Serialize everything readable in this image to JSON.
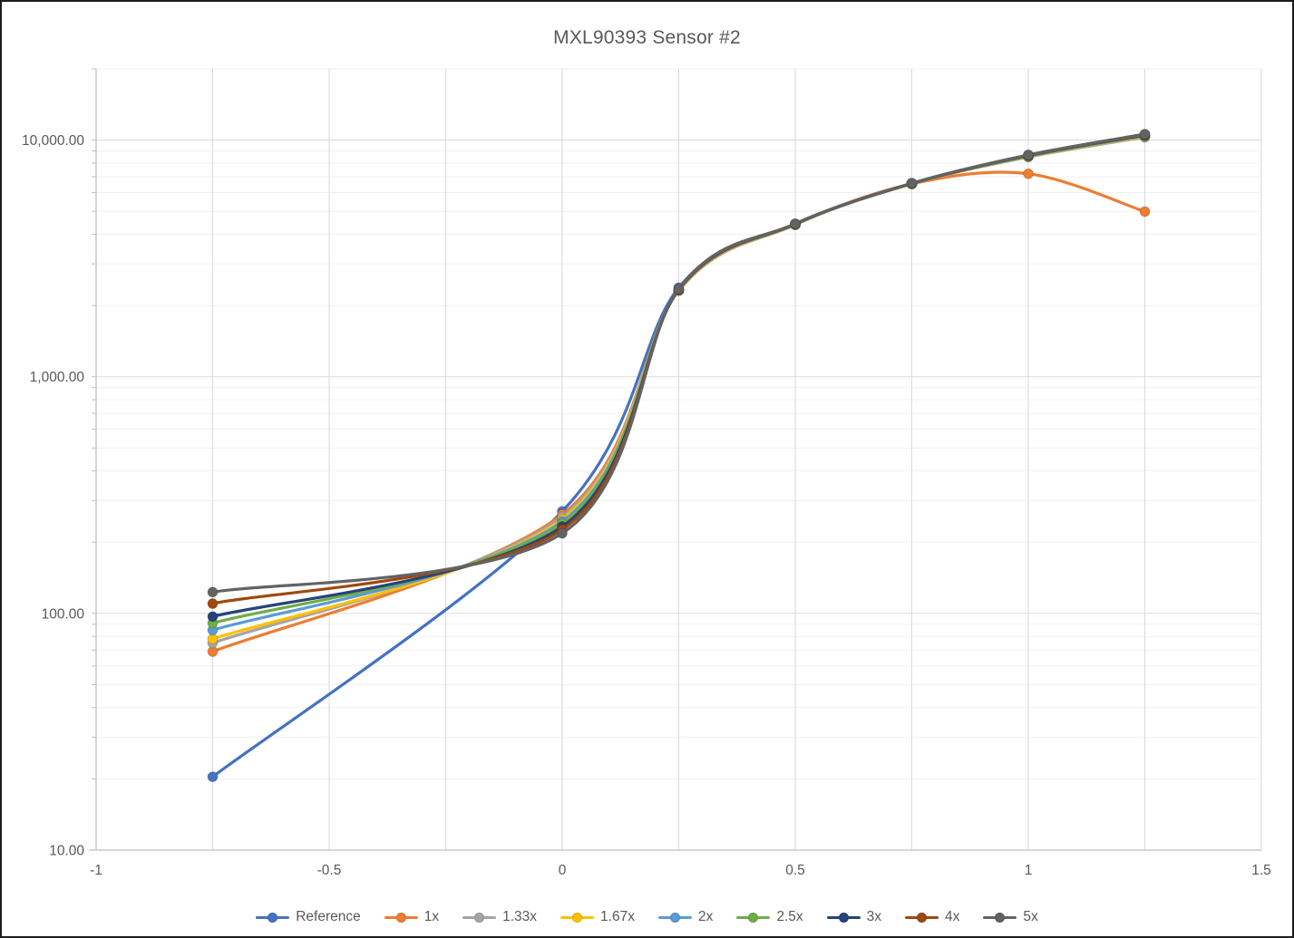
{
  "title": "MXL90393 Sensor #2",
  "colors": {
    "background": "#FFFFFF",
    "frame_border": "#1C1C1C",
    "grid_major": "#DADADA",
    "grid_minor": "#F1F1F1",
    "axis_line": "#BFBFBF",
    "text": "#595959"
  },
  "chart_data": {
    "type": "line",
    "title": "MXL90393 Sensor #2",
    "xlabel": "",
    "ylabel": "",
    "y_scale": "log",
    "xlim": [
      -1,
      1.5
    ],
    "ylim": [
      10,
      20000
    ],
    "grid": true,
    "v_grid_step": 0.25,
    "legend_position": "bottom",
    "marker": "circle",
    "smooth_lines": true,
    "x": [
      -0.75,
      0,
      0.25,
      0.5,
      0.75,
      1,
      1.25
    ],
    "series": [
      {
        "name": "Reference",
        "color": "#4472C4",
        "values": [
          20.4,
          270,
          2380,
          4420,
          6560,
          8640,
          10560
        ]
      },
      {
        "name": "1x",
        "color": "#ED7D31",
        "values": [
          69,
          262,
          2310,
          4390,
          6530,
          7210,
          4990
        ]
      },
      {
        "name": "1.33x",
        "color": "#A5A5A5",
        "values": [
          75,
          256,
          2315,
          4395,
          6535,
          8480,
          10280
        ]
      },
      {
        "name": "1.67x",
        "color": "#FFC000",
        "values": [
          78,
          250,
          2320,
          4400,
          6540,
          8520,
          10370
        ]
      },
      {
        "name": "2x",
        "color": "#5B9BD5",
        "values": [
          85,
          245,
          2325,
          4405,
          6545,
          8550,
          10420
        ]
      },
      {
        "name": "2.5x",
        "color": "#70AD47",
        "values": [
          91,
          240,
          2330,
          4410,
          6550,
          8580,
          10460
        ]
      },
      {
        "name": "3x",
        "color": "#264478",
        "values": [
          97,
          233,
          2335,
          4420,
          6555,
          8610,
          10500
        ]
      },
      {
        "name": "4x",
        "color": "#9E480E",
        "values": [
          110,
          226,
          2340,
          4425,
          6565,
          8630,
          10550
        ]
      },
      {
        "name": "5x",
        "color": "#636363",
        "values": [
          123,
          218,
          2350,
          4435,
          6575,
          8660,
          10600
        ]
      }
    ],
    "x_ticks": [
      {
        "v": -1,
        "label": "-1"
      },
      {
        "v": -0.5,
        "label": "-0.5"
      },
      {
        "v": 0,
        "label": "0"
      },
      {
        "v": 0.5,
        "label": "0.5"
      },
      {
        "v": 1,
        "label": "1"
      },
      {
        "v": 1.5,
        "label": "1.5"
      }
    ],
    "y_ticks": [
      {
        "v": 10,
        "label": "10.00"
      },
      {
        "v": 100,
        "label": "100.00"
      },
      {
        "v": 1000,
        "label": "1,000.00"
      },
      {
        "v": 10000,
        "label": "10,000.00"
      }
    ]
  }
}
